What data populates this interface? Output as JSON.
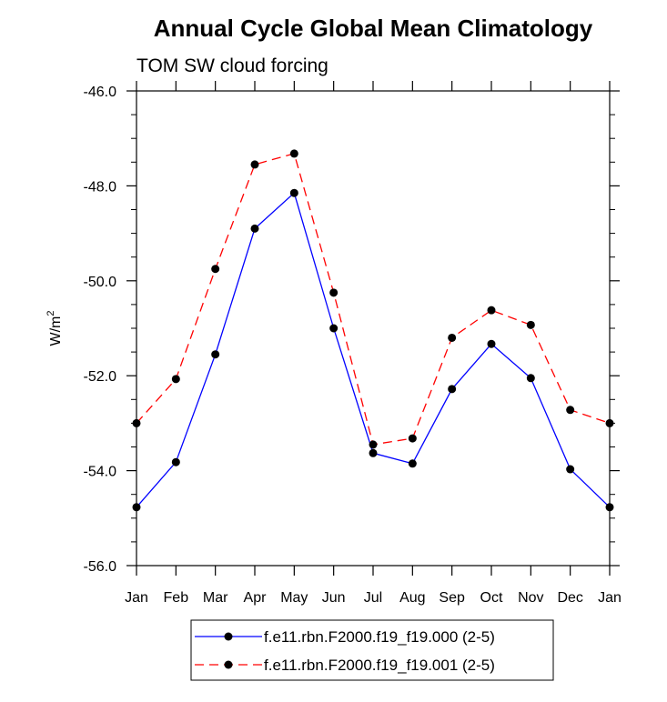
{
  "chart_data": {
    "type": "line",
    "title": "Annual Cycle Global Mean Climatology",
    "subtitle": "TOM SW cloud forcing",
    "xlabel": "",
    "ylabel": "W/m",
    "ylabel_superscript": "2",
    "categories": [
      "Jan",
      "Feb",
      "Mar",
      "Apr",
      "May",
      "Jun",
      "Jul",
      "Aug",
      "Sep",
      "Oct",
      "Nov",
      "Dec",
      "Jan"
    ],
    "ylim": [
      -56.0,
      -46.0
    ],
    "yticks": [
      -56.0,
      -54.0,
      -52.0,
      -50.0,
      -48.0,
      -46.0
    ],
    "ytick_labels": [
      "-56.0",
      "-54.0",
      "-52.0",
      "-50.0",
      "-48.0",
      "-46.0"
    ],
    "grid": false,
    "legend_position": "bottom",
    "series": [
      {
        "name": "f.e11.rbn.F2000.f19_f19.000 (2-5)",
        "color": "#0000ff",
        "line_style": "solid",
        "marker": "circle",
        "values": [
          -54.77,
          -53.82,
          -51.55,
          -48.9,
          -48.15,
          -51.0,
          -53.63,
          -53.85,
          -52.28,
          -51.33,
          -52.05,
          -53.97,
          -54.77
        ]
      },
      {
        "name": "f.e11.rbn.F2000.f19_f19.001 (2-5)",
        "color": "#ff0000",
        "line_style": "dashed",
        "marker": "circle",
        "values": [
          -53.0,
          -52.07,
          -49.75,
          -47.55,
          -47.32,
          -50.25,
          -53.45,
          -53.32,
          -51.2,
          -50.62,
          -50.93,
          -52.72,
          -53.0
        ]
      }
    ]
  }
}
